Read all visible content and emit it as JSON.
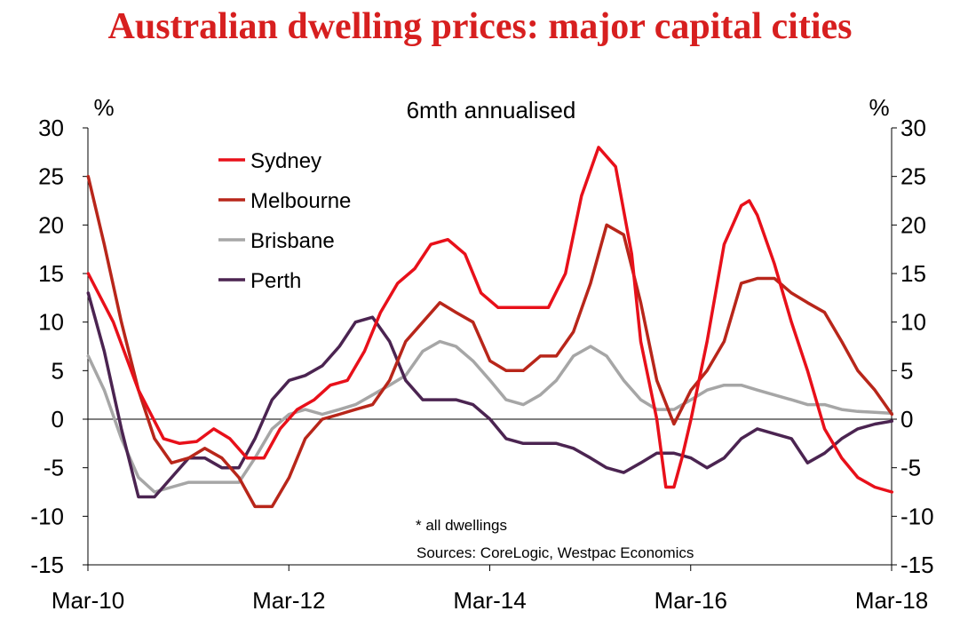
{
  "chart_data": {
    "type": "line",
    "title": "Australian dwelling prices: major capital cities",
    "subtitle": "6mth annualised",
    "ylabel_left": "%",
    "ylabel_right": "%",
    "ylim": [
      -15,
      30
    ],
    "yticks": [
      30,
      25,
      20,
      15,
      10,
      5,
      0,
      -5,
      -10,
      -15
    ],
    "xlim": [
      2010.167,
      2018.167
    ],
    "xticks": [
      {
        "x": 2010.167,
        "label": "Mar-10"
      },
      {
        "x": 2012.167,
        "label": "Mar-12"
      },
      {
        "x": 2014.167,
        "label": "Mar-14"
      },
      {
        "x": 2016.167,
        "label": "Mar-16"
      },
      {
        "x": 2018.167,
        "label": "Mar-18"
      }
    ],
    "note": "* all dwellings",
    "source": "Sources: CoreLogic, Westpac Economics",
    "series": [
      {
        "name": "Sydney",
        "color": "#e8101a",
        "x": [
          2010.17,
          2010.42,
          2010.67,
          2010.92,
          2011.08,
          2011.25,
          2011.42,
          2011.58,
          2011.75,
          2011.92,
          2012.08,
          2012.25,
          2012.42,
          2012.58,
          2012.75,
          2012.92,
          2013.08,
          2013.25,
          2013.42,
          2013.58,
          2013.75,
          2013.92,
          2014.08,
          2014.25,
          2014.42,
          2014.58,
          2014.75,
          2014.92,
          2015.08,
          2015.25,
          2015.42,
          2015.58,
          2015.67,
          2015.83,
          2015.92,
          2016.0,
          2016.08,
          2016.17,
          2016.33,
          2016.5,
          2016.67,
          2016.75,
          2016.83,
          2017.0,
          2017.17,
          2017.33,
          2017.5,
          2017.67,
          2017.83,
          2018.0,
          2018.17
        ],
        "y": [
          15,
          10,
          3,
          -2,
          -2.5,
          -2.3,
          -1,
          -2,
          -4,
          -4,
          -1,
          1,
          2,
          3.5,
          4,
          7,
          11,
          14,
          15.5,
          18,
          18.5,
          17,
          13,
          11.5,
          11.5,
          11.5,
          11.5,
          15,
          23,
          28,
          26,
          17,
          8,
          0,
          -7,
          -7,
          -4,
          0,
          8,
          18,
          22,
          22.5,
          21,
          16,
          10,
          5,
          -1,
          -4,
          -6,
          -7,
          -7.5
        ]
      },
      {
        "name": "Melbourne",
        "color": "#b8261a",
        "x": [
          2010.17,
          2010.33,
          2010.5,
          2010.67,
          2010.83,
          2011.0,
          2011.17,
          2011.33,
          2011.5,
          2011.67,
          2011.83,
          2012.0,
          2012.17,
          2012.33,
          2012.5,
          2012.67,
          2012.83,
          2013.0,
          2013.17,
          2013.33,
          2013.5,
          2013.67,
          2013.83,
          2014.0,
          2014.17,
          2014.33,
          2014.5,
          2014.67,
          2014.83,
          2015.0,
          2015.17,
          2015.33,
          2015.5,
          2015.67,
          2015.83,
          2016.0,
          2016.17,
          2016.33,
          2016.5,
          2016.67,
          2016.83,
          2017.0,
          2017.17,
          2017.33,
          2017.5,
          2017.67,
          2017.83,
          2018.0,
          2018.17
        ],
        "y": [
          25,
          18,
          10,
          3,
          -2,
          -4.5,
          -4,
          -3,
          -4,
          -6,
          -9,
          -9,
          -6,
          -2,
          0,
          0.5,
          1,
          1.5,
          4,
          8,
          10,
          12,
          11,
          10,
          6,
          5,
          5,
          6.5,
          6.5,
          9,
          14,
          20,
          19,
          12,
          4,
          -0.5,
          3,
          5,
          8,
          14,
          14.5,
          14.5,
          13,
          12,
          11,
          8,
          5,
          3,
          0.5
        ]
      },
      {
        "name": "Brisbane",
        "color": "#a6a6a6",
        "x": [
          2010.17,
          2010.33,
          2010.5,
          2010.67,
          2010.83,
          2011.0,
          2011.17,
          2011.33,
          2011.5,
          2011.67,
          2011.83,
          2012.0,
          2012.17,
          2012.33,
          2012.5,
          2012.67,
          2012.83,
          2013.0,
          2013.17,
          2013.33,
          2013.5,
          2013.67,
          2013.83,
          2014.0,
          2014.17,
          2014.33,
          2014.5,
          2014.67,
          2014.83,
          2015.0,
          2015.17,
          2015.33,
          2015.5,
          2015.67,
          2015.83,
          2016.0,
          2016.17,
          2016.33,
          2016.5,
          2016.67,
          2016.83,
          2017.0,
          2017.17,
          2017.33,
          2017.5,
          2017.67,
          2017.83,
          2018.0,
          2018.17
        ],
        "y": [
          6.5,
          3,
          -2,
          -6,
          -7.5,
          -7,
          -6.5,
          -6.5,
          -6.5,
          -6.5,
          -4,
          -1,
          0.5,
          1,
          0.5,
          1,
          1.5,
          2.5,
          3.5,
          4.5,
          7,
          8,
          7.5,
          6,
          4,
          2,
          1.5,
          2.5,
          4,
          6.5,
          7.5,
          6.5,
          4,
          2,
          1,
          1,
          2,
          3,
          3.5,
          3.5,
          3,
          2.5,
          2,
          1.5,
          1.5,
          1,
          0.8,
          0.7,
          0.6
        ]
      },
      {
        "name": "Perth",
        "color": "#4b2451",
        "x": [
          2010.17,
          2010.33,
          2010.5,
          2010.67,
          2010.83,
          2011.0,
          2011.17,
          2011.33,
          2011.5,
          2011.67,
          2011.83,
          2012.0,
          2012.17,
          2012.33,
          2012.5,
          2012.67,
          2012.83,
          2013.0,
          2013.17,
          2013.33,
          2013.5,
          2013.67,
          2013.83,
          2014.0,
          2014.17,
          2014.33,
          2014.5,
          2014.67,
          2014.83,
          2015.0,
          2015.17,
          2015.33,
          2015.5,
          2015.67,
          2015.83,
          2016.0,
          2016.17,
          2016.33,
          2016.5,
          2016.67,
          2016.83,
          2017.0,
          2017.17,
          2017.33,
          2017.5,
          2017.67,
          2017.83,
          2018.0,
          2018.17
        ],
        "y": [
          13,
          7,
          -1,
          -8,
          -8,
          -6,
          -4,
          -4,
          -5,
          -5,
          -2,
          2,
          4,
          4.5,
          5.5,
          7.5,
          10,
          10.5,
          8,
          4,
          2,
          2,
          2,
          1.5,
          0,
          -2,
          -2.5,
          -2.5,
          -2.5,
          -3,
          -4,
          -5,
          -5.5,
          -4.5,
          -3.5,
          -3.5,
          -4,
          -5,
          -4,
          -2,
          -1,
          -1.5,
          -2,
          -4.5,
          -3.5,
          -2,
          -1,
          -0.5,
          -0.2
        ]
      }
    ]
  }
}
